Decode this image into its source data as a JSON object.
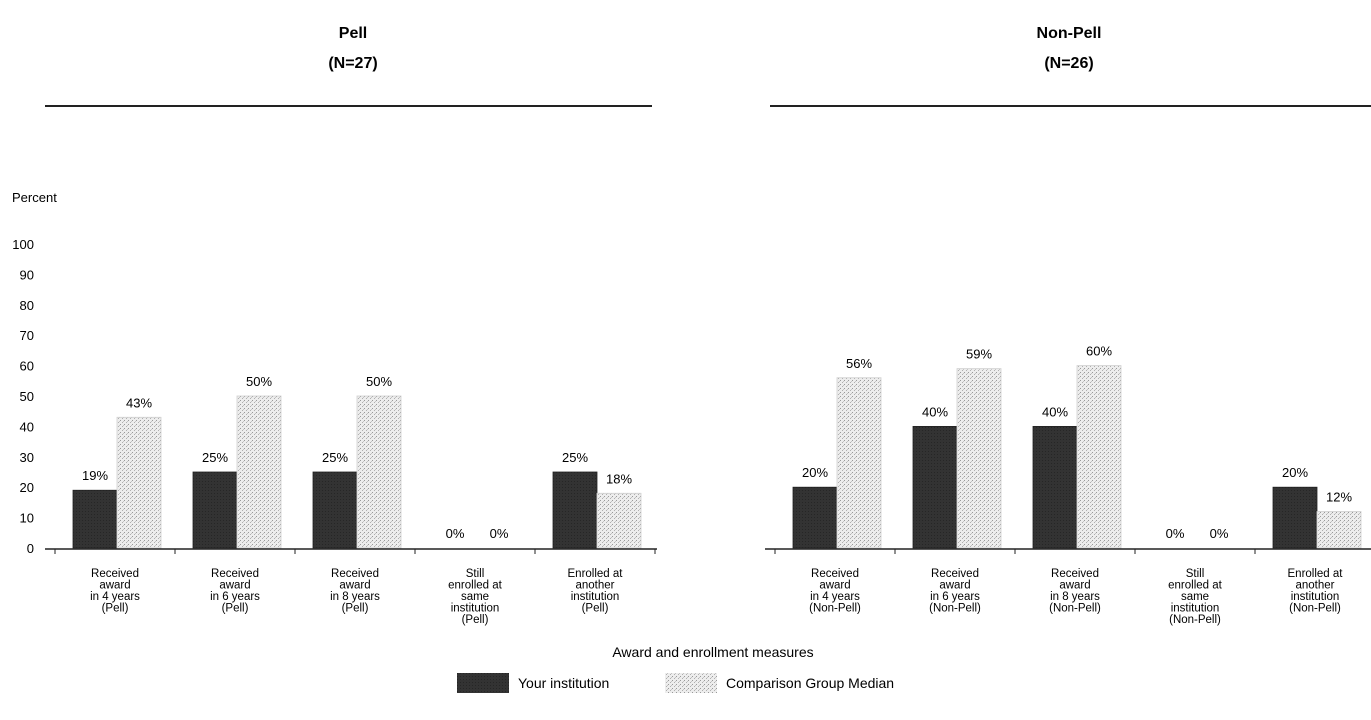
{
  "chart_data": {
    "type": "bar",
    "ylabel": "Percent",
    "xlabel": "Award and enrollment measures",
    "ylim": [
      0,
      100
    ],
    "yticks": [
      0,
      10,
      20,
      30,
      40,
      50,
      60,
      70,
      80,
      90,
      100
    ],
    "legend": [
      "Your institution",
      "Comparison Group Median"
    ],
    "legend_position": "bottom-center",
    "colors": {
      "your_institution": "#333333",
      "comparison": "#d9d9d9"
    },
    "groups": [
      {
        "title": "Pell",
        "n_label": "(N=27)",
        "categories": [
          [
            "Received",
            "award",
            "in 4 years",
            "(Pell)"
          ],
          [
            "Received",
            "award",
            "in 6 years",
            "(Pell)"
          ],
          [
            "Received",
            "award",
            "in 8 years",
            "(Pell)"
          ],
          [
            "Still",
            "enrolled at",
            "same",
            "institution",
            "(Pell)"
          ],
          [
            "Enrolled at",
            "another",
            "institution",
            "(Pell)"
          ]
        ],
        "series": [
          {
            "name": "Your institution",
            "values": [
              19,
              25,
              25,
              0,
              25
            ],
            "labels": [
              "19%",
              "25%",
              "25%",
              "0%",
              "25%"
            ]
          },
          {
            "name": "Comparison Group Median",
            "values": [
              43,
              50,
              50,
              0,
              18
            ],
            "labels": [
              "43%",
              "50%",
              "50%",
              "0%",
              "18%"
            ]
          }
        ]
      },
      {
        "title": "Non-Pell",
        "n_label": "(N=26)",
        "categories": [
          [
            "Received",
            "award",
            "in 4 years",
            "(Non-Pell)"
          ],
          [
            "Received",
            "award",
            "in 6 years",
            "(Non-Pell)"
          ],
          [
            "Received",
            "award",
            "in 8 years",
            "(Non-Pell)"
          ],
          [
            "Still",
            "enrolled at",
            "same",
            "institution",
            "(Non-Pell)"
          ],
          [
            "Enrolled at",
            "another",
            "institution",
            "(Non-Pell)"
          ]
        ],
        "series": [
          {
            "name": "Your institution",
            "values": [
              20,
              40,
              40,
              0,
              20
            ],
            "labels": [
              "20%",
              "40%",
              "40%",
              "0%",
              "20%"
            ]
          },
          {
            "name": "Comparison Group Median",
            "values": [
              56,
              59,
              60,
              0,
              12
            ],
            "labels": [
              "56%",
              "59%",
              "60%",
              "0%",
              "12%"
            ]
          }
        ]
      }
    ]
  }
}
